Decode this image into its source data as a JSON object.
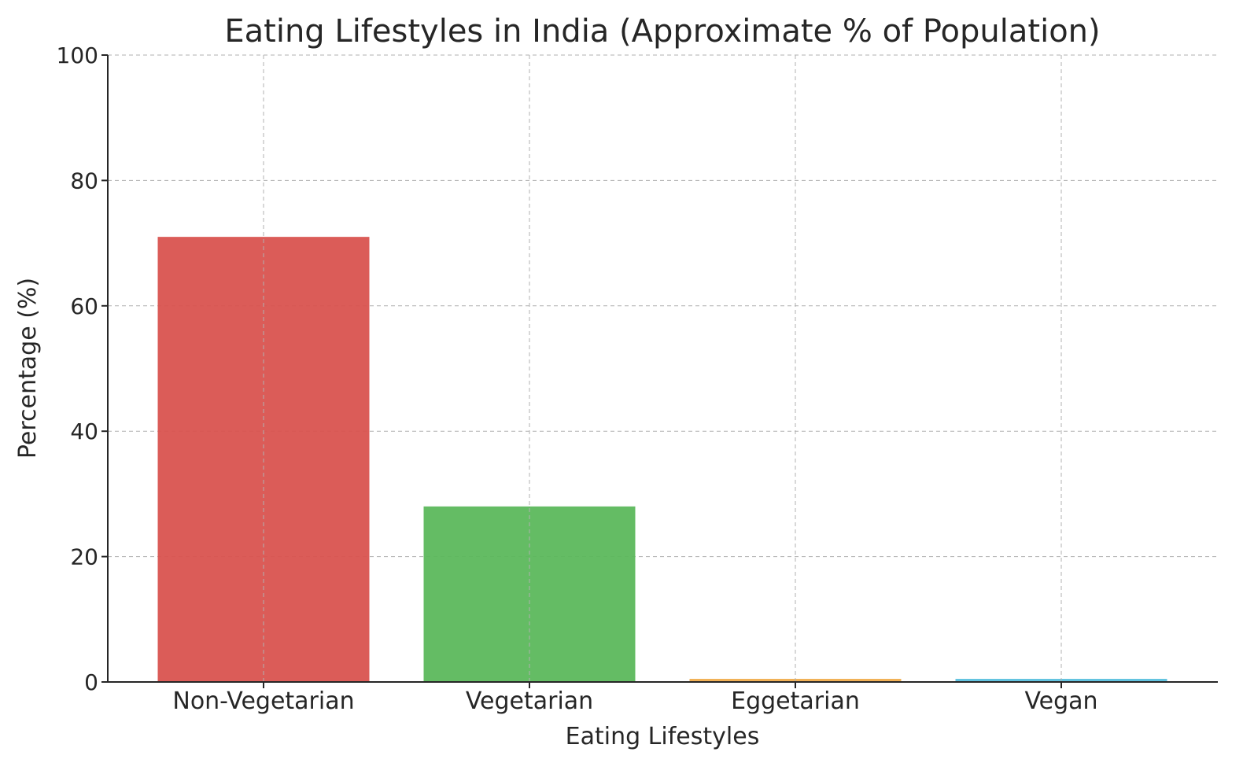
{
  "chart_data": {
    "type": "bar",
    "title": "Eating Lifestyles in India (Approximate % of Population)",
    "xlabel": "Eating Lifestyles",
    "ylabel": "Percentage (%)",
    "categories": [
      "Non-Vegetarian",
      "Vegetarian",
      "Eggetarian",
      "Vegan"
    ],
    "values": [
      71,
      28,
      0.5,
      0.5
    ],
    "colors": [
      "#d9534f",
      "#5cb85c",
      "#f0ad4e",
      "#5bc0de"
    ],
    "ylim": [
      0,
      100
    ],
    "yticks": [
      0,
      20,
      40,
      60,
      80,
      100
    ],
    "grid": true
  }
}
